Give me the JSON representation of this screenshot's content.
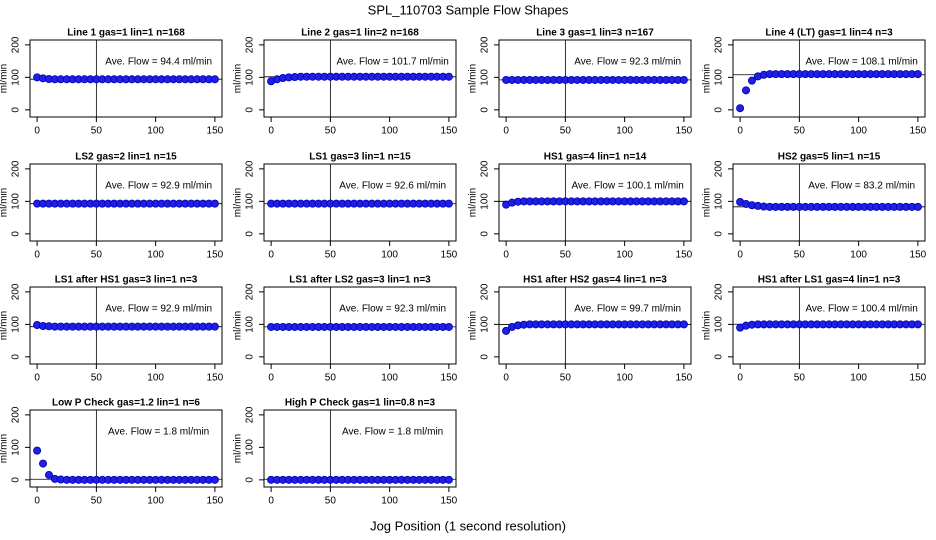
{
  "title": "SPL_110703  Sample Flow Shapes",
  "x_label": "Jog Position (1 second resolution)",
  "chart_data": [
    {
      "type": "scatter",
      "title": "Line 1 gas=1 lin=1 n=168",
      "annotation": "Ave. Flow = 94.4  ml/min",
      "y_label": "ml/min",
      "color": "#1f1fe6",
      "hline": 94.4,
      "vline": 50,
      "xlim": [
        -6,
        156
      ],
      "ylim": [
        -22,
        215
      ],
      "xticks": [
        0,
        50,
        100,
        150
      ],
      "yticks": [
        0,
        100,
        200
      ],
      "x": [
        0,
        5,
        10,
        15,
        20,
        25,
        30,
        35,
        40,
        45,
        50,
        55,
        60,
        65,
        70,
        75,
        80,
        85,
        90,
        95,
        100,
        105,
        110,
        115,
        120,
        125,
        130,
        135,
        140,
        145,
        150
      ],
      "values": [
        100,
        97,
        95,
        94,
        94,
        94,
        94,
        94,
        94,
        94,
        94,
        94,
        94,
        94,
        94,
        94,
        94,
        94,
        94,
        94,
        94,
        94,
        94,
        94,
        94,
        94,
        94,
        94,
        94,
        94,
        94
      ]
    },
    {
      "type": "scatter",
      "title": "Line 2 gas=1 lin=2 n=168",
      "annotation": "Ave. Flow = 101.7  ml/min",
      "y_label": "ml/min",
      "color": "#1f1fe6",
      "hline": 101.7,
      "vline": 50,
      "xlim": [
        -6,
        156
      ],
      "ylim": [
        -22,
        215
      ],
      "xticks": [
        0,
        50,
        100,
        150
      ],
      "yticks": [
        0,
        100,
        200
      ],
      "x": [
        0,
        5,
        10,
        15,
        20,
        25,
        30,
        35,
        40,
        45,
        50,
        55,
        60,
        65,
        70,
        75,
        80,
        85,
        90,
        95,
        100,
        105,
        110,
        115,
        120,
        125,
        130,
        135,
        140,
        145,
        150
      ],
      "values": [
        88,
        94,
        98,
        100,
        101,
        102,
        102,
        102,
        102,
        102,
        102,
        102,
        102,
        102,
        102,
        102,
        102,
        102,
        102,
        102,
        102,
        102,
        102,
        102,
        102,
        102,
        102,
        102,
        102,
        102,
        102
      ]
    },
    {
      "type": "scatter",
      "title": "Line 3 gas=1 lin=3 n=167",
      "annotation": "Ave. Flow = 92.3  ml/min",
      "y_label": "ml/min",
      "color": "#1f1fe6",
      "hline": 92.3,
      "vline": 50,
      "xlim": [
        -6,
        156
      ],
      "ylim": [
        -22,
        215
      ],
      "xticks": [
        0,
        50,
        100,
        150
      ],
      "yticks": [
        0,
        100,
        200
      ],
      "x": [
        0,
        5,
        10,
        15,
        20,
        25,
        30,
        35,
        40,
        45,
        50,
        55,
        60,
        65,
        70,
        75,
        80,
        85,
        90,
        95,
        100,
        105,
        110,
        115,
        120,
        125,
        130,
        135,
        140,
        145,
        150
      ],
      "values": [
        92,
        92,
        92,
        92,
        92,
        92,
        92,
        92,
        92,
        92,
        92,
        92,
        92,
        92,
        92,
        92,
        92,
        92,
        92,
        92,
        92,
        92,
        92,
        92,
        92,
        92,
        92,
        92,
        92,
        92,
        92
      ]
    },
    {
      "type": "scatter",
      "title": "Line 4 (LT) gas=1 lin=4 n=3",
      "annotation": "Ave. Flow = 108.1  ml/min",
      "y_label": "ml/min",
      "color": "#1f1fe6",
      "hline": 108.1,
      "vline": 50,
      "xlim": [
        -6,
        156
      ],
      "ylim": [
        -22,
        215
      ],
      "xticks": [
        0,
        50,
        100,
        150
      ],
      "yticks": [
        0,
        100,
        200
      ],
      "x": [
        0,
        5,
        10,
        15,
        20,
        25,
        30,
        35,
        40,
        45,
        50,
        55,
        60,
        65,
        70,
        75,
        80,
        85,
        90,
        95,
        100,
        105,
        110,
        115,
        120,
        125,
        130,
        135,
        140,
        145,
        150
      ],
      "values": [
        5,
        60,
        90,
        103,
        108,
        110,
        110,
        110,
        110,
        110,
        110,
        110,
        110,
        110,
        110,
        110,
        110,
        110,
        110,
        110,
        110,
        110,
        110,
        110,
        110,
        110,
        110,
        110,
        110,
        110,
        110
      ]
    },
    {
      "type": "scatter",
      "title": "LS2 gas=2 lin=1 n=15",
      "annotation": "Ave. Flow = 92.9  ml/min",
      "y_label": "ml/min",
      "color": "#1f1fe6",
      "hline": 92.9,
      "vline": 50,
      "xlim": [
        -6,
        156
      ],
      "ylim": [
        -22,
        215
      ],
      "xticks": [
        0,
        50,
        100,
        150
      ],
      "yticks": [
        0,
        100,
        200
      ],
      "x": [
        0,
        5,
        10,
        15,
        20,
        25,
        30,
        35,
        40,
        45,
        50,
        55,
        60,
        65,
        70,
        75,
        80,
        85,
        90,
        95,
        100,
        105,
        110,
        115,
        120,
        125,
        130,
        135,
        140,
        145,
        150
      ],
      "values": [
        93,
        93,
        93,
        93,
        93,
        93,
        93,
        93,
        93,
        93,
        93,
        93,
        93,
        93,
        93,
        93,
        93,
        93,
        93,
        93,
        93,
        93,
        93,
        93,
        93,
        93,
        93,
        93,
        93,
        93,
        93
      ]
    },
    {
      "type": "scatter",
      "title": "LS1 gas=3 lin=1 n=15",
      "annotation": "Ave. Flow = 92.6  ml/min",
      "y_label": "ml/min",
      "color": "#1f1fe6",
      "hline": 92.6,
      "vline": 50,
      "xlim": [
        -6,
        156
      ],
      "ylim": [
        -22,
        215
      ],
      "xticks": [
        0,
        50,
        100,
        150
      ],
      "yticks": [
        0,
        100,
        200
      ],
      "x": [
        0,
        5,
        10,
        15,
        20,
        25,
        30,
        35,
        40,
        45,
        50,
        55,
        60,
        65,
        70,
        75,
        80,
        85,
        90,
        95,
        100,
        105,
        110,
        115,
        120,
        125,
        130,
        135,
        140,
        145,
        150
      ],
      "values": [
        93,
        93,
        93,
        93,
        93,
        93,
        93,
        93,
        93,
        93,
        93,
        93,
        93,
        93,
        93,
        93,
        93,
        93,
        93,
        93,
        93,
        93,
        93,
        93,
        93,
        93,
        93,
        93,
        93,
        93,
        93
      ]
    },
    {
      "type": "scatter",
      "title": "HS1 gas=4 lin=1 n=14",
      "annotation": "Ave. Flow = 100.1  ml/min",
      "y_label": "ml/min",
      "color": "#1f1fe6",
      "hline": 100.1,
      "vline": 50,
      "xlim": [
        -6,
        156
      ],
      "ylim": [
        -22,
        215
      ],
      "xticks": [
        0,
        50,
        100,
        150
      ],
      "yticks": [
        0,
        100,
        200
      ],
      "x": [
        0,
        5,
        10,
        15,
        20,
        25,
        30,
        35,
        40,
        45,
        50,
        55,
        60,
        65,
        70,
        75,
        80,
        85,
        90,
        95,
        100,
        105,
        110,
        115,
        120,
        125,
        130,
        135,
        140,
        145,
        150
      ],
      "values": [
        90,
        96,
        99,
        100,
        100,
        100,
        100,
        100,
        100,
        100,
        100,
        100,
        100,
        100,
        100,
        100,
        100,
        100,
        100,
        100,
        100,
        100,
        100,
        100,
        100,
        100,
        100,
        100,
        100,
        100,
        100
      ]
    },
    {
      "type": "scatter",
      "title": "HS2 gas=5 lin=1 n=15",
      "annotation": "Ave. Flow = 83.2  ml/min",
      "y_label": "ml/min",
      "color": "#1f1fe6",
      "hline": 83.2,
      "vline": 50,
      "xlim": [
        -6,
        156
      ],
      "ylim": [
        -22,
        215
      ],
      "xticks": [
        0,
        50,
        100,
        150
      ],
      "yticks": [
        0,
        100,
        200
      ],
      "x": [
        0,
        5,
        10,
        15,
        20,
        25,
        30,
        35,
        40,
        45,
        50,
        55,
        60,
        65,
        70,
        75,
        80,
        85,
        90,
        95,
        100,
        105,
        110,
        115,
        120,
        125,
        130,
        135,
        140,
        145,
        150
      ],
      "values": [
        98,
        92,
        88,
        86,
        84,
        83,
        83,
        83,
        83,
        83,
        83,
        83,
        83,
        83,
        83,
        83,
        83,
        83,
        83,
        83,
        83,
        83,
        83,
        83,
        83,
        83,
        83,
        83,
        83,
        83,
        83
      ]
    },
    {
      "type": "scatter",
      "title": "LS1 after HS1 gas=3 lin=1 n=3",
      "annotation": "Ave. Flow = 92.9  ml/min",
      "y_label": "ml/min",
      "color": "#1f1fe6",
      "hline": 92.9,
      "vline": 50,
      "xlim": [
        -6,
        156
      ],
      "ylim": [
        -22,
        215
      ],
      "xticks": [
        0,
        50,
        100,
        150
      ],
      "yticks": [
        0,
        100,
        200
      ],
      "x": [
        0,
        5,
        10,
        15,
        20,
        25,
        30,
        35,
        40,
        45,
        50,
        55,
        60,
        65,
        70,
        75,
        80,
        85,
        90,
        95,
        100,
        105,
        110,
        115,
        120,
        125,
        130,
        135,
        140,
        145,
        150
      ],
      "values": [
        98,
        95,
        94,
        93,
        93,
        93,
        93,
        93,
        93,
        93,
        93,
        93,
        93,
        93,
        93,
        93,
        93,
        93,
        93,
        93,
        93,
        93,
        93,
        93,
        93,
        93,
        93,
        93,
        93,
        93,
        93
      ]
    },
    {
      "type": "scatter",
      "title": "LS1 after LS2 gas=3 lin=1 n=3",
      "annotation": "Ave. Flow = 92.3  ml/min",
      "y_label": "ml/min",
      "color": "#1f1fe6",
      "hline": 92.3,
      "vline": 50,
      "xlim": [
        -6,
        156
      ],
      "ylim": [
        -22,
        215
      ],
      "xticks": [
        0,
        50,
        100,
        150
      ],
      "yticks": [
        0,
        100,
        200
      ],
      "x": [
        0,
        5,
        10,
        15,
        20,
        25,
        30,
        35,
        40,
        45,
        50,
        55,
        60,
        65,
        70,
        75,
        80,
        85,
        90,
        95,
        100,
        105,
        110,
        115,
        120,
        125,
        130,
        135,
        140,
        145,
        150
      ],
      "values": [
        92,
        92,
        92,
        92,
        92,
        92,
        92,
        92,
        92,
        92,
        92,
        92,
        92,
        92,
        92,
        92,
        92,
        92,
        92,
        92,
        92,
        92,
        92,
        92,
        92,
        92,
        92,
        92,
        92,
        92,
        92
      ]
    },
    {
      "type": "scatter",
      "title": "HS1 after HS2 gas=4 lin=1 n=3",
      "annotation": "Ave. Flow = 99.7  ml/min",
      "y_label": "ml/min",
      "color": "#1f1fe6",
      "hline": 99.7,
      "vline": 50,
      "xlim": [
        -6,
        156
      ],
      "ylim": [
        -22,
        215
      ],
      "xticks": [
        0,
        50,
        100,
        150
      ],
      "yticks": [
        0,
        100,
        200
      ],
      "x": [
        0,
        5,
        10,
        15,
        20,
        25,
        30,
        35,
        40,
        45,
        50,
        55,
        60,
        65,
        70,
        75,
        80,
        85,
        90,
        95,
        100,
        105,
        110,
        115,
        120,
        125,
        130,
        135,
        140,
        145,
        150
      ],
      "values": [
        80,
        92,
        97,
        99,
        100,
        100,
        100,
        100,
        100,
        100,
        100,
        100,
        100,
        100,
        100,
        100,
        100,
        100,
        100,
        100,
        100,
        100,
        100,
        100,
        100,
        100,
        100,
        100,
        100,
        100,
        100
      ]
    },
    {
      "type": "scatter",
      "title": "HS1 after LS1 gas=4 lin=1 n=3",
      "annotation": "Ave. Flow = 100.4  ml/min",
      "y_label": "ml/min",
      "color": "#1f1fe6",
      "hline": 100.4,
      "vline": 50,
      "xlim": [
        -6,
        156
      ],
      "ylim": [
        -22,
        215
      ],
      "xticks": [
        0,
        50,
        100,
        150
      ],
      "yticks": [
        0,
        100,
        200
      ],
      "x": [
        0,
        5,
        10,
        15,
        20,
        25,
        30,
        35,
        40,
        45,
        50,
        55,
        60,
        65,
        70,
        75,
        80,
        85,
        90,
        95,
        100,
        105,
        110,
        115,
        120,
        125,
        130,
        135,
        140,
        145,
        150
      ],
      "values": [
        90,
        96,
        99,
        100,
        100,
        100,
        100,
        100,
        100,
        100,
        100,
        100,
        100,
        100,
        100,
        100,
        100,
        100,
        100,
        100,
        100,
        100,
        100,
        100,
        100,
        100,
        100,
        100,
        100,
        100,
        100
      ]
    },
    {
      "type": "scatter",
      "title": "Low P Check gas=1.2 lin=1 n=6",
      "annotation": "Ave. Flow = 1.8  ml/min",
      "y_label": "ml/min",
      "color": "#1f1fe6",
      "hline": 1.8,
      "vline": 50,
      "xlim": [
        -6,
        156
      ],
      "ylim": [
        -22,
        215
      ],
      "xticks": [
        0,
        50,
        100,
        150
      ],
      "yticks": [
        0,
        100,
        200
      ],
      "x": [
        0,
        5,
        10,
        15,
        20,
        25,
        30,
        35,
        40,
        45,
        50,
        55,
        60,
        65,
        70,
        75,
        80,
        85,
        90,
        95,
        100,
        105,
        110,
        115,
        120,
        125,
        130,
        135,
        140,
        145,
        150
      ],
      "values": [
        90,
        50,
        15,
        3,
        1,
        0,
        0,
        0,
        0,
        0,
        0,
        0,
        0,
        0,
        0,
        0,
        0,
        0,
        0,
        0,
        0,
        0,
        0,
        0,
        0,
        0,
        0,
        0,
        0,
        0,
        0
      ]
    },
    {
      "type": "scatter",
      "title": "High P Check gas=1 lin=0.8 n=3",
      "annotation": "Ave. Flow = 1.8  ml/min",
      "y_label": "ml/min",
      "color": "#1f1fe6",
      "hline": 1.8,
      "vline": 50,
      "xlim": [
        -6,
        156
      ],
      "ylim": [
        -22,
        215
      ],
      "xticks": [
        0,
        50,
        100,
        150
      ],
      "yticks": [
        0,
        100,
        200
      ],
      "x": [
        0,
        5,
        10,
        15,
        20,
        25,
        30,
        35,
        40,
        45,
        50,
        55,
        60,
        65,
        70,
        75,
        80,
        85,
        90,
        95,
        100,
        105,
        110,
        115,
        120,
        125,
        130,
        135,
        140,
        145,
        150
      ],
      "values": [
        0,
        0,
        0,
        0,
        0,
        0,
        0,
        0,
        0,
        0,
        0,
        0,
        0,
        0,
        0,
        0,
        0,
        0,
        0,
        0,
        0,
        0,
        0,
        0,
        0,
        0,
        0,
        0,
        0,
        0,
        0
      ]
    }
  ]
}
